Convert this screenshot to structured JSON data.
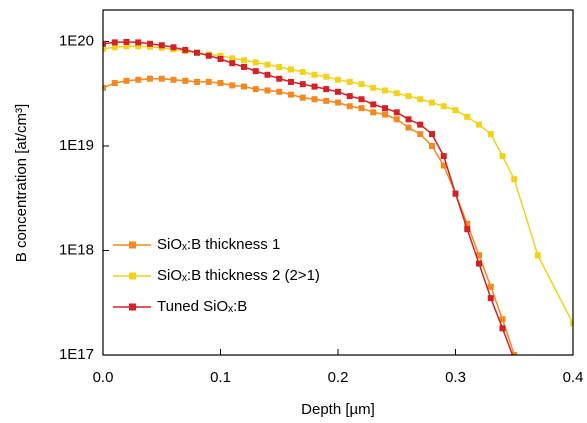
{
  "chart_data": {
    "type": "line",
    "xlabel": "Depth [µm]",
    "ylabel": "B concentration [at/cm³]",
    "xlim": [
      0,
      0.4
    ],
    "xticks": [
      {
        "value": 0,
        "label": "0.0"
      },
      0.1,
      0.2,
      0.3,
      0.4
    ],
    "ylim": [
      1e+17,
      2e+20
    ],
    "yticks": [
      {
        "value": 1e+17,
        "label": "1E17"
      },
      {
        "value": 1e+18,
        "label": "1E18"
      },
      {
        "value": 1e+19,
        "label": "1E19"
      },
      {
        "value": 1e+20,
        "label": "1E20"
      }
    ],
    "log_y": true,
    "legend": "lower left",
    "series": [
      {
        "name": "SiOₓ:B thickness 1",
        "color": "#f5891f",
        "x": [
          0,
          0.01,
          0.02,
          0.03,
          0.04,
          0.05,
          0.06,
          0.07,
          0.08,
          0.09,
          0.1,
          0.11,
          0.12,
          0.13,
          0.14,
          0.15,
          0.16,
          0.17,
          0.18,
          0.19,
          0.2,
          0.21,
          0.22,
          0.23,
          0.24,
          0.25,
          0.26,
          0.27,
          0.28,
          0.29,
          0.3,
          0.31,
          0.32,
          0.33,
          0.34,
          0.35
        ],
        "values": [
          3.6e+19,
          4e+19,
          4.2e+19,
          4.3e+19,
          4.4e+19,
          4.4e+19,
          4.3e+19,
          4.2e+19,
          4.1e+19,
          4.1e+19,
          4e+19,
          3.8e+19,
          3.7e+19,
          3.5e+19,
          3.4e+19,
          3.3e+19,
          3.1e+19,
          2.9e+19,
          2.8e+19,
          2.7e+19,
          2.6e+19,
          2.4e+19,
          2.3e+19,
          2.1e+19,
          2e+19,
          1.8e+19,
          1.5e+19,
          1.3e+19,
          1e+19,
          6.5e+18,
          3.5e+18,
          1.8e+18,
          9e+17,
          4.5e+17,
          2.2e+17,
          1e+17
        ]
      },
      {
        "name": "SiOₓ:B thickness 2 (2>1)",
        "color": "#f2d21a",
        "x": [
          0,
          0.01,
          0.02,
          0.03,
          0.04,
          0.05,
          0.06,
          0.07,
          0.08,
          0.09,
          0.1,
          0.11,
          0.12,
          0.13,
          0.14,
          0.15,
          0.16,
          0.17,
          0.18,
          0.19,
          0.2,
          0.21,
          0.22,
          0.23,
          0.24,
          0.25,
          0.26,
          0.27,
          0.28,
          0.29,
          0.3,
          0.31,
          0.32,
          0.33,
          0.34,
          0.35,
          0.37,
          0.4
        ],
        "values": [
          8.5e+19,
          8.8e+19,
          9e+19,
          9e+19,
          8.9e+19,
          8.7e+19,
          8.4e+19,
          8.1e+19,
          7.8e+19,
          7.5e+19,
          7.3e+19,
          6.9e+19,
          6.6e+19,
          6.3e+19,
          6e+19,
          5.7e+19,
          5.4e+19,
          5.1e+19,
          4.8e+19,
          4.6e+19,
          4.3e+19,
          4.1e+19,
          3.9e+19,
          3.6e+19,
          3.4e+19,
          3.2e+19,
          3e+19,
          2.8e+19,
          2.6e+19,
          2.4e+19,
          2.2e+19,
          1.9e+19,
          1.6e+19,
          1.3e+19,
          8e+18,
          4.8e+18,
          9e+17,
          2e+17
        ]
      },
      {
        "name": "Tuned SiOₓ:B",
        "color": "#d42027",
        "x": [
          0,
          0.01,
          0.02,
          0.03,
          0.04,
          0.05,
          0.06,
          0.07,
          0.08,
          0.09,
          0.1,
          0.11,
          0.12,
          0.13,
          0.14,
          0.15,
          0.16,
          0.17,
          0.18,
          0.19,
          0.2,
          0.21,
          0.22,
          0.23,
          0.24,
          0.25,
          0.26,
          0.27,
          0.28,
          0.29,
          0.3,
          0.31,
          0.32,
          0.33,
          0.34,
          0.35
        ],
        "values": [
          9.5e+19,
          9.8e+19,
          9.9e+19,
          9.8e+19,
          9.5e+19,
          9.2e+19,
          8.8e+19,
          8.3e+19,
          7.8e+19,
          7.3e+19,
          6.8e+19,
          6.2e+19,
          5.7e+19,
          5.2e+19,
          4.8e+19,
          4.4e+19,
          4.1e+19,
          3.9e+19,
          3.7e+19,
          3.5e+19,
          3.3e+19,
          3e+19,
          2.8e+19,
          2.5e+19,
          2.3e+19,
          2.1e+19,
          1.8e+19,
          1.6e+19,
          1.3e+19,
          8e+18,
          3.5e+18,
          1.6e+18,
          7.5e+17,
          3.5e+17,
          1.8e+17,
          9e+16
        ]
      }
    ]
  }
}
